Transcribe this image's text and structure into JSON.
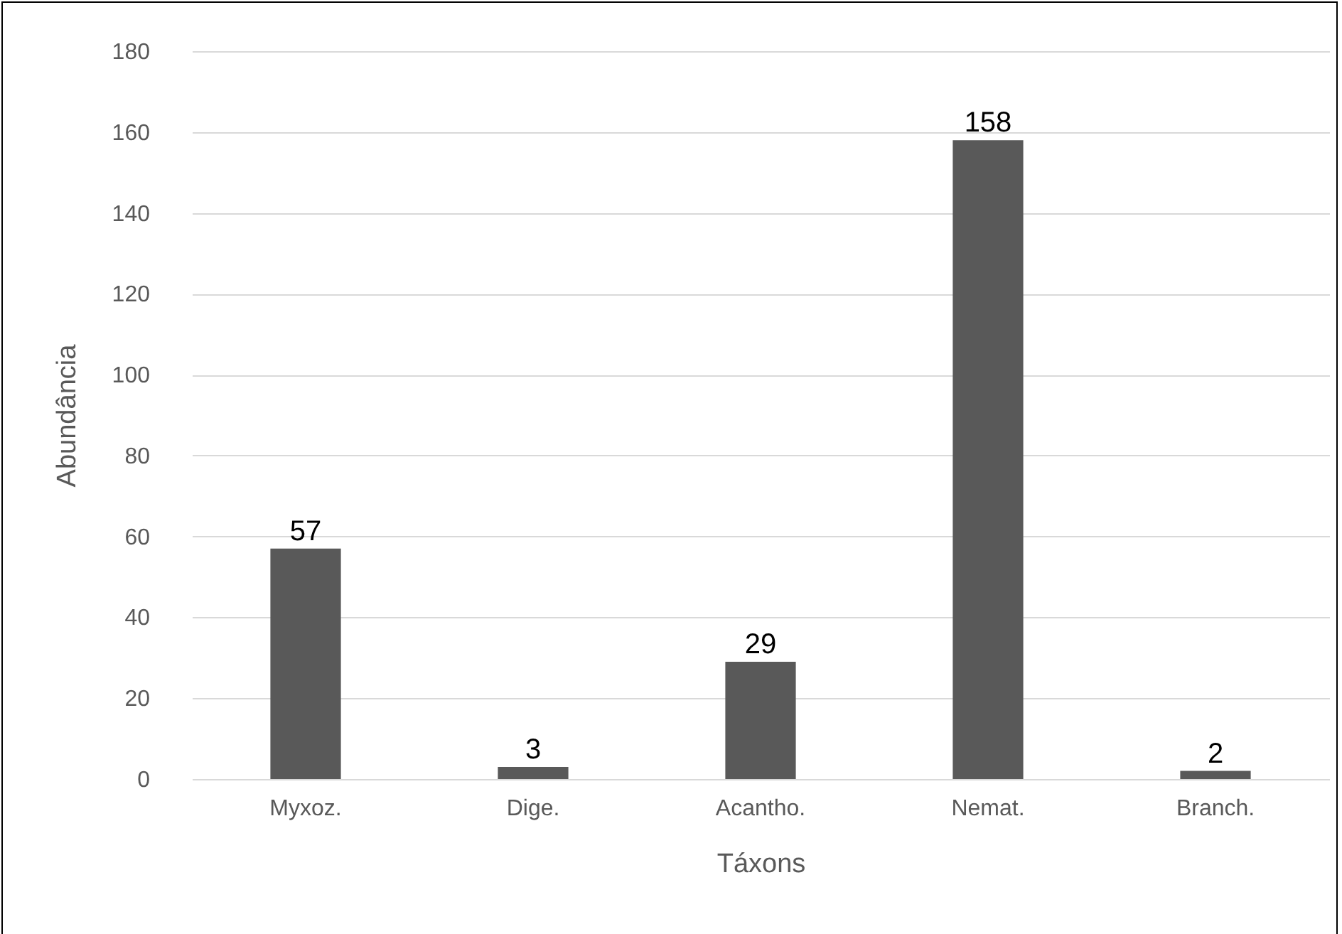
{
  "chart_data": {
    "type": "bar",
    "xlabel": "Táxons",
    "ylabel": "Abundância",
    "categories": [
      "Myxoz.",
      "Dige.",
      "Acantho.",
      "Nemat.",
      "Branch."
    ],
    "values": [
      57,
      3,
      29,
      158,
      2
    ],
    "color": "#595959",
    "ylim": [
      0,
      180
    ],
    "yticks": [
      0,
      20,
      40,
      60,
      80,
      100,
      120,
      140,
      160,
      180
    ],
    "grid": "y",
    "data_labels": true
  }
}
